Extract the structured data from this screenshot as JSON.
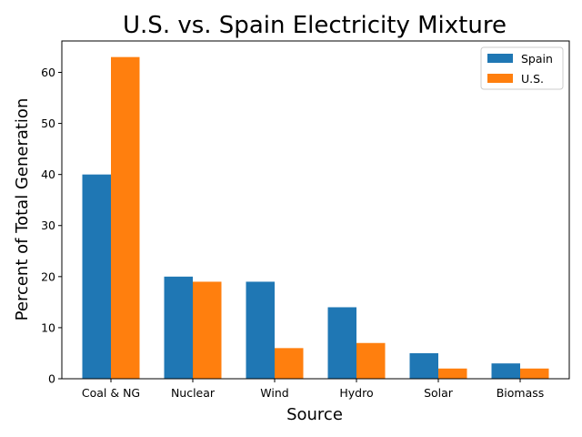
{
  "chart_data": {
    "type": "bar",
    "title": "U.S. vs. Spain Electricity Mixture",
    "xlabel": "Source",
    "ylabel": "Percent of Total Generation",
    "categories": [
      "Coal & NG",
      "Nuclear",
      "Wind",
      "Hydro",
      "Solar",
      "Biomass"
    ],
    "series": [
      {
        "name": "Spain",
        "values": [
          40,
          20,
          19,
          14,
          5,
          3
        ],
        "color": "#1f77b4"
      },
      {
        "name": "U.S.",
        "values": [
          63,
          19,
          6,
          7,
          2,
          2
        ],
        "color": "#ff7f0e"
      }
    ],
    "ylim": [
      0,
      66.15
    ],
    "yticks": [
      0,
      10,
      20,
      30,
      40,
      50,
      60
    ],
    "grid": false,
    "legend_position": "top-right"
  }
}
